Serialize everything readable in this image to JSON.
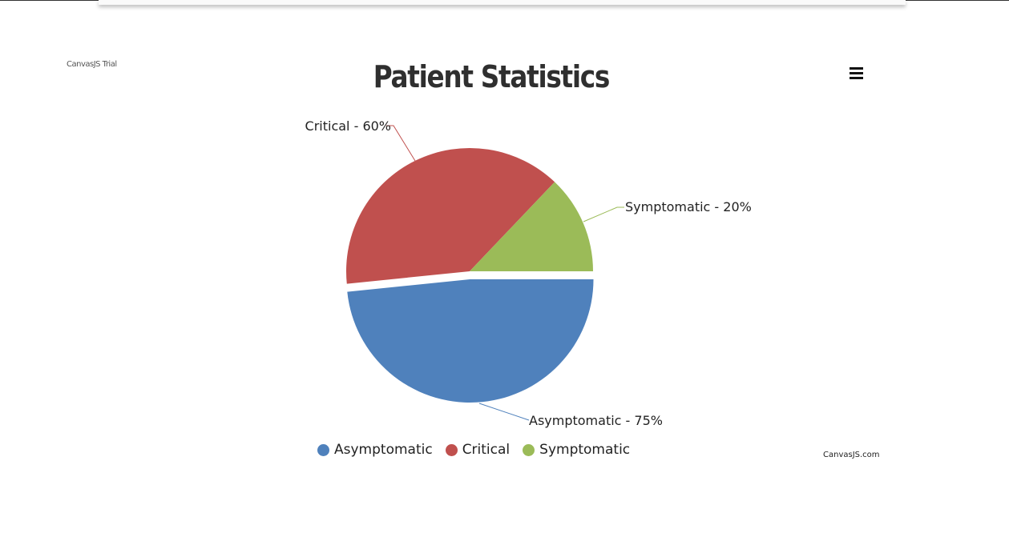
{
  "watermark": "CanvasJS Trial",
  "credit": "CanvasJS.com",
  "menu_icon": "hamburger-menu-icon",
  "chart_data": {
    "type": "pie",
    "title": "Patient Statistics",
    "legend_placement": "bottom",
    "slices": [
      {
        "name": "Asymptomatic",
        "label": "Asymptomatic - 75%",
        "value": 75,
        "color": "#4F81BC",
        "exploded": true
      },
      {
        "name": "Critical",
        "label": "Critical - 60%",
        "value": 60,
        "color": "#C0504E",
        "exploded": false
      },
      {
        "name": "Symptomatic",
        "label": "Symptomatic - 20%",
        "value": 20,
        "color": "#9BBB58",
        "exploded": false
      }
    ],
    "legend": [
      "Asymptomatic",
      "Critical",
      "Symptomatic"
    ]
  }
}
